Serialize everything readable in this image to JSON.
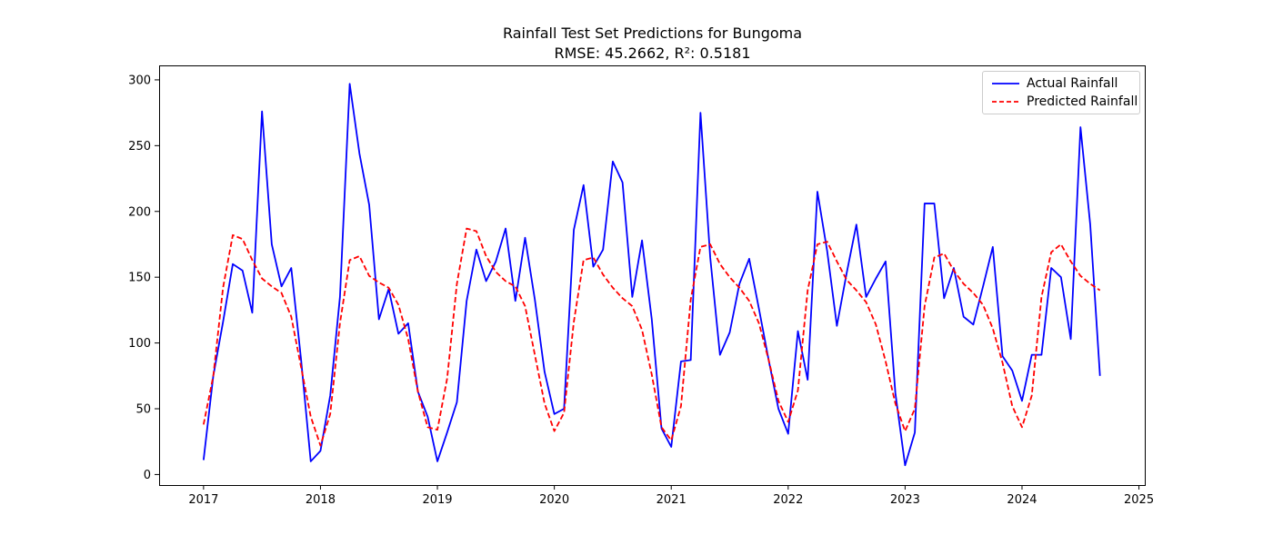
{
  "chart_data": {
    "type": "line",
    "title": "Rainfall Test Set Predictions for Bungoma",
    "subtitle": "RMSE: 45.2662, R²: 0.5181",
    "xlabel": "",
    "ylabel": "",
    "xlim": [
      2016.62,
      2025.05
    ],
    "ylim": [
      -8,
      311
    ],
    "x_ticks": [
      2017,
      2018,
      2019,
      2020,
      2021,
      2022,
      2023,
      2024,
      2025
    ],
    "y_ticks": [
      0,
      50,
      100,
      150,
      200,
      250,
      300
    ],
    "grid": false,
    "legend_position": "top-right",
    "x_start_year": 2017,
    "series": [
      {
        "name": "Actual Rainfall",
        "color": "#0000ff",
        "style": "solid",
        "values": [
          11,
          75,
          116,
          160,
          155,
          123,
          276,
          175,
          143,
          157,
          88,
          10,
          18,
          60,
          135,
          297,
          244,
          205,
          118,
          141,
          107,
          115,
          63,
          44,
          10,
          32,
          55,
          132,
          171,
          147,
          162,
          187,
          132,
          180,
          133,
          78,
          46,
          50,
          186,
          220,
          158,
          171,
          238,
          222,
          135,
          178,
          118,
          35,
          21,
          86,
          87,
          275,
          165,
          91,
          108,
          145,
          164,
          126,
          87,
          50,
          31,
          109,
          72,
          215,
          170,
          113,
          153,
          190,
          135,
          149,
          162,
          62,
          7,
          32,
          206,
          206,
          134,
          157,
          120,
          114,
          143,
          173,
          90,
          79,
          56,
          91,
          91,
          157,
          150,
          103,
          264,
          190,
          75
        ]
      },
      {
        "name": "Predicted Rainfall",
        "color": "#ff0000",
        "style": "dashed",
        "values": [
          38,
          75,
          142,
          182,
          179,
          163,
          149,
          143,
          138,
          120,
          82,
          44,
          22,
          46,
          115,
          163,
          166,
          151,
          146,
          142,
          129,
          103,
          63,
          36,
          34,
          73,
          145,
          187,
          185,
          166,
          154,
          147,
          143,
          128,
          91,
          54,
          33,
          47,
          116,
          163,
          165,
          152,
          142,
          134,
          128,
          110,
          76,
          36,
          26,
          52,
          133,
          173,
          175,
          160,
          150,
          142,
          132,
          115,
          87,
          56,
          40,
          64,
          140,
          175,
          177,
          162,
          148,
          140,
          131,
          114,
          86,
          54,
          33,
          50,
          128,
          165,
          168,
          155,
          145,
          138,
          129,
          111,
          85,
          52,
          36,
          60,
          135,
          169,
          175,
          162,
          151,
          145,
          140
        ]
      }
    ]
  }
}
